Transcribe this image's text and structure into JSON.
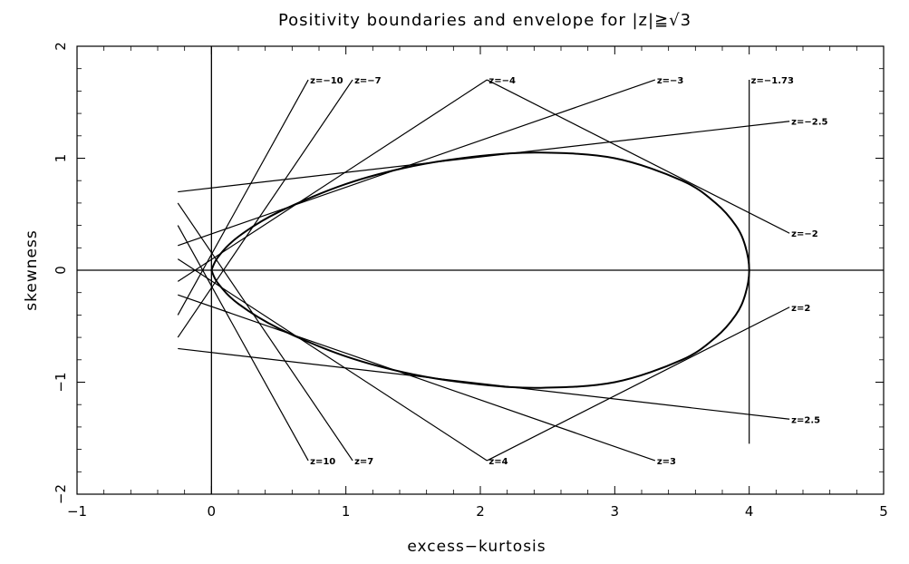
{
  "chart_data": {
    "type": "line",
    "title": "Positivity boundaries and envelope for |z|≧√3",
    "xlabel": "excess−kurtosis",
    "ylabel": "skewness",
    "xlim": [
      -1,
      5
    ],
    "ylim": [
      -2,
      2
    ],
    "x_ticks": [
      -1,
      0,
      1,
      2,
      3,
      4,
      5
    ],
    "y_ticks": [
      -2,
      -1,
      0,
      1,
      2
    ],
    "x_tick_labels": [
      "−1",
      "0",
      "1",
      "2",
      "3",
      "4",
      "5"
    ],
    "y_tick_labels": [
      "−2",
      "−1",
      "0",
      "1",
      "2"
    ],
    "grid": false,
    "reference_lines": [
      {
        "orientation": "vertical",
        "x": 0
      },
      {
        "orientation": "horizontal",
        "y": 0
      }
    ],
    "envelope": {
      "x": [
        0,
        0.05,
        0.2,
        0.5,
        1.0,
        1.5,
        2.0,
        2.45,
        3.0,
        3.5,
        3.75,
        3.9,
        3.97,
        4.0,
        3.97,
        3.9,
        3.75,
        3.5,
        3.0,
        2.45,
        2.0,
        1.5,
        1.0,
        0.5,
        0.2,
        0.05,
        0
      ],
      "y": [
        0,
        0.12,
        0.3,
        0.52,
        0.77,
        0.93,
        1.02,
        1.05,
        1.0,
        0.8,
        0.6,
        0.4,
        0.22,
        0,
        -0.22,
        -0.4,
        -0.6,
        -0.8,
        -1.0,
        -1.05,
        -1.02,
        -0.93,
        -0.77,
        -0.52,
        -0.3,
        -0.12,
        0
      ]
    },
    "boundaries": [
      {
        "label": "z=−10",
        "z": -10,
        "x": [
          -0.25,
          0.72
        ],
        "y": [
          -0.4,
          1.7
        ]
      },
      {
        "label": "z=−7",
        "z": -7,
        "x": [
          -0.25,
          1.05
        ],
        "y": [
          -0.6,
          1.7
        ]
      },
      {
        "label": "z=−4",
        "z": -4,
        "x": [
          -0.25,
          2.05
        ],
        "y": [
          -0.1,
          1.7
        ]
      },
      {
        "label": "z=−3",
        "z": -3,
        "x": [
          -0.25,
          3.3
        ],
        "y": [
          0.22,
          1.7
        ]
      },
      {
        "label": "z=−2.5",
        "z": -2.5,
        "x": [
          -0.25,
          4.3
        ],
        "y": [
          0.7,
          1.33
        ]
      },
      {
        "label": "z=−2",
        "z": -2,
        "x": [
          2.05,
          4.3
        ],
        "y": [
          1.7,
          0.33
        ]
      },
      {
        "label": "z=−1.73",
        "z": -1.73,
        "x": [
          4.0,
          4.0
        ],
        "y": [
          -1.55,
          1.7
        ]
      },
      {
        "label": "z=10",
        "z": 10,
        "x": [
          -0.25,
          0.72
        ],
        "y": [
          0.4,
          -1.7
        ]
      },
      {
        "label": "z=7",
        "z": 7,
        "x": [
          -0.25,
          1.05
        ],
        "y": [
          0.6,
          -1.7
        ]
      },
      {
        "label": "z=4",
        "z": 4,
        "x": [
          -0.25,
          2.05
        ],
        "y": [
          0.1,
          -1.7
        ]
      },
      {
        "label": "z=3",
        "z": 3,
        "x": [
          -0.25,
          3.3
        ],
        "y": [
          -0.22,
          -1.7
        ]
      },
      {
        "label": "z=2.5",
        "z": 2.5,
        "x": [
          -0.25,
          4.3
        ],
        "y": [
          -0.7,
          -1.33
        ]
      },
      {
        "label": "z=2",
        "z": 2,
        "x": [
          2.05,
          4.3
        ],
        "y": [
          -1.7,
          -0.33
        ]
      }
    ]
  }
}
